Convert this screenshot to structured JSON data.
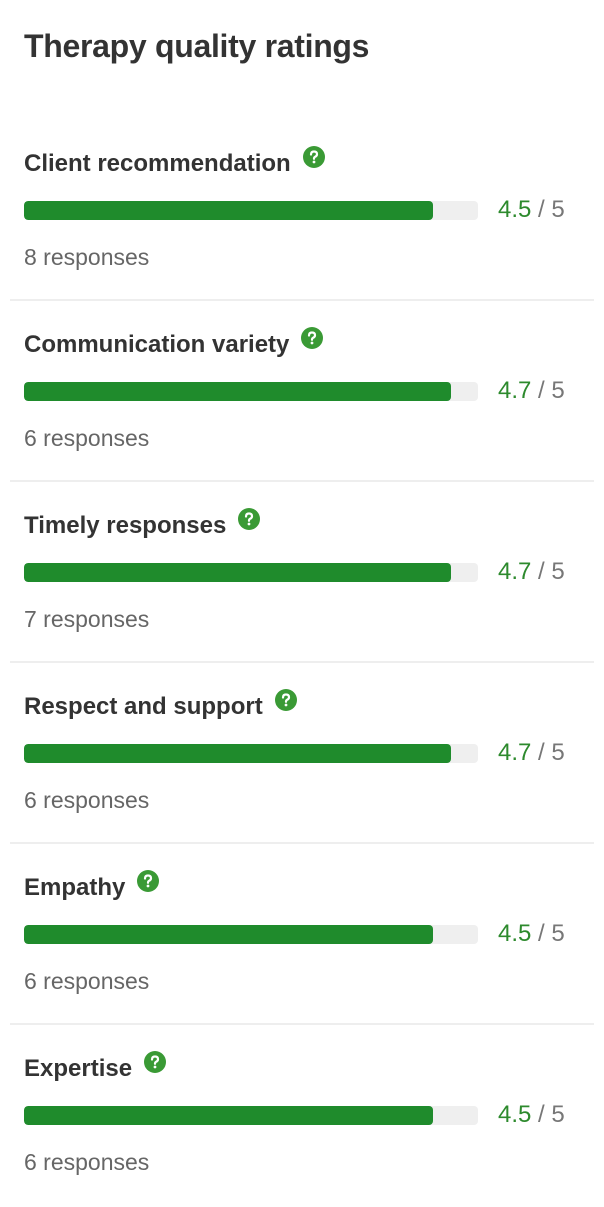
{
  "title": "Therapy quality ratings",
  "items": [
    {
      "label": "Client recommendation",
      "rating": 4.5,
      "max": 5,
      "responses": "8 responses"
    },
    {
      "label": "Communication variety",
      "rating": 4.7,
      "max": 5,
      "responses": "6 responses"
    },
    {
      "label": "Timely responses",
      "rating": 4.7,
      "max": 5,
      "responses": "7 responses"
    },
    {
      "label": "Respect and support",
      "rating": 4.7,
      "max": 5,
      "responses": "6 responses"
    },
    {
      "label": "Empathy",
      "rating": 4.5,
      "max": 5,
      "responses": "6 responses"
    },
    {
      "label": "Expertise",
      "rating": 4.5,
      "max": 5,
      "responses": "6 responses"
    }
  ]
}
